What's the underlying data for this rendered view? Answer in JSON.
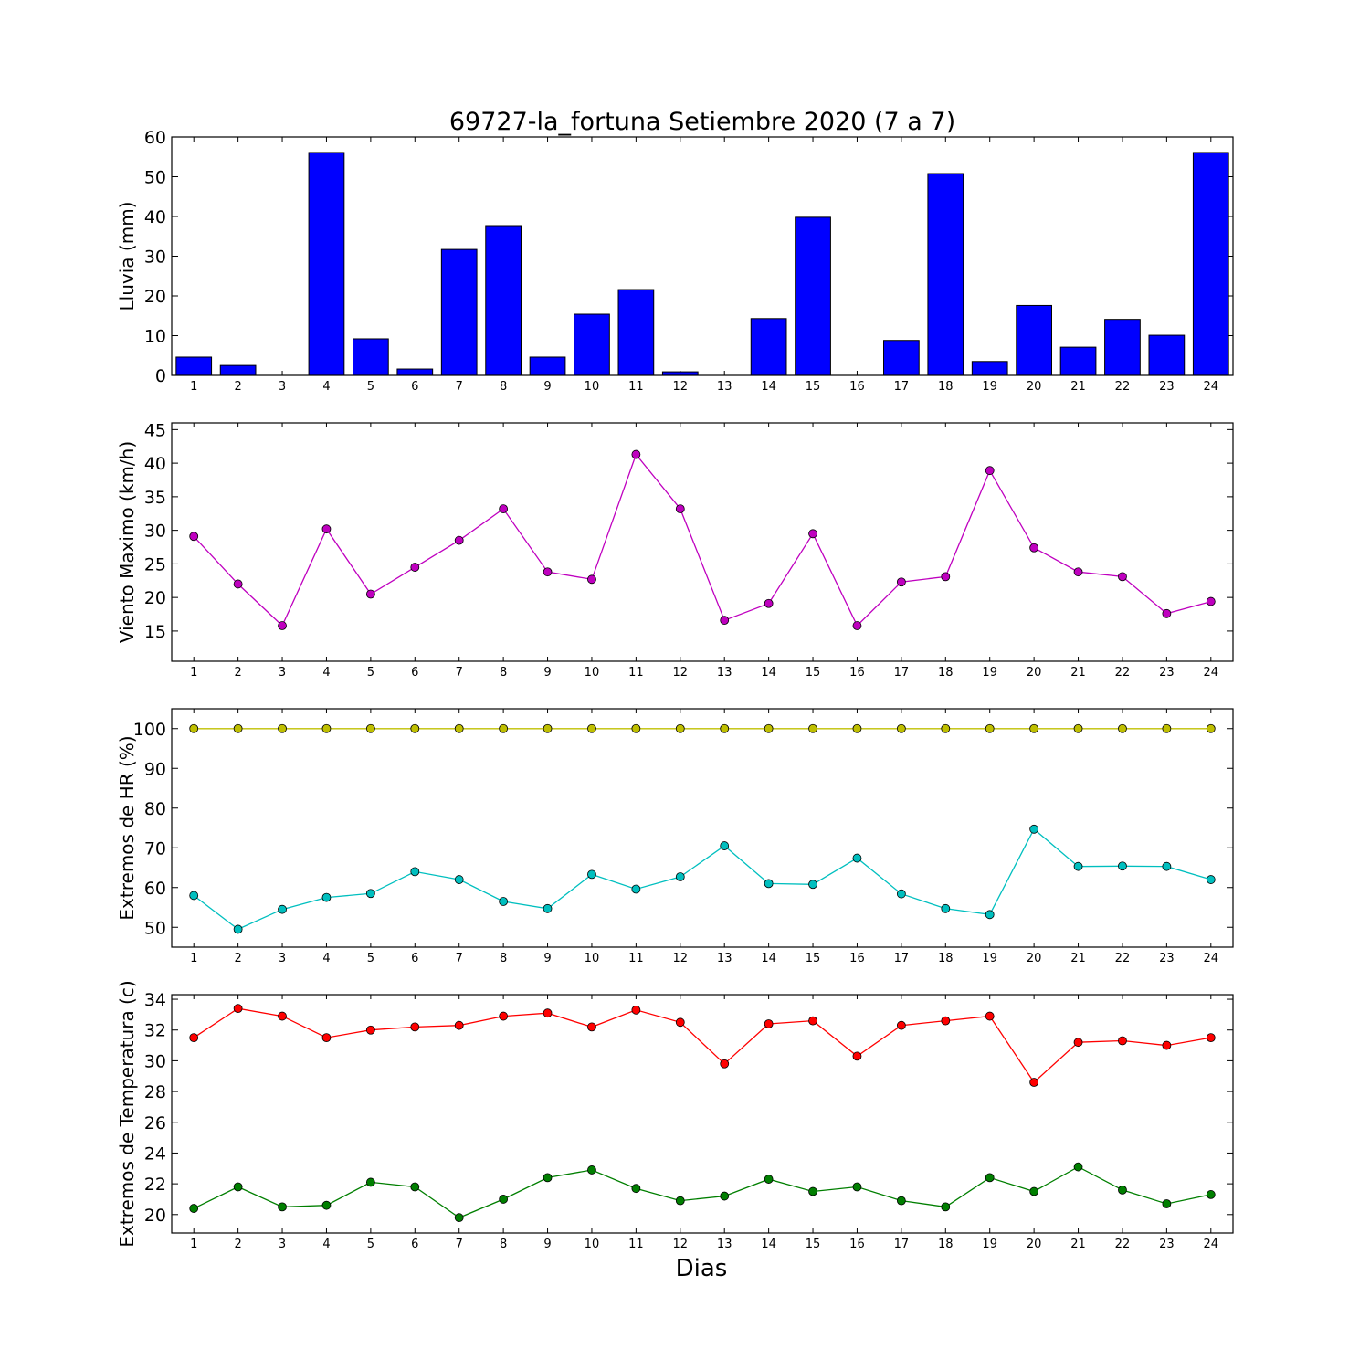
{
  "title": "69727-la_fortuna Setiembre 2020  (7 a 7)",
  "xlabel": "Dias",
  "chart_data": [
    {
      "type": "bar",
      "ylabel": "Lluvia (mm)",
      "ylim": [
        0,
        60
      ],
      "yticks": [
        0,
        10,
        20,
        30,
        40,
        50,
        60
      ],
      "categories": [
        "1",
        "2",
        "3",
        "4",
        "5",
        "6",
        "7",
        "8",
        "9",
        "10",
        "11",
        "12",
        "13",
        "14",
        "15",
        "16",
        "17",
        "18",
        "19",
        "20",
        "21",
        "22",
        "23",
        "24"
      ],
      "series": [
        {
          "color": "#0000ff",
          "values": [
            4.6,
            2.5,
            0.0,
            56.1,
            9.2,
            1.6,
            31.7,
            37.7,
            4.6,
            15.4,
            21.6,
            0.9,
            0.0,
            14.3,
            39.8,
            0.0,
            8.8,
            50.8,
            3.5,
            17.6,
            7.1,
            14.1,
            10.1,
            56.1
          ]
        }
      ]
    },
    {
      "type": "line",
      "ylabel": "Viento Maximo (km/h)",
      "ylim": [
        10.5,
        46
      ],
      "yticks": [
        15,
        20,
        25,
        30,
        35,
        40,
        45
      ],
      "categories": [
        "1",
        "2",
        "3",
        "4",
        "5",
        "6",
        "7",
        "8",
        "9",
        "10",
        "11",
        "12",
        "13",
        "14",
        "15",
        "16",
        "17",
        "18",
        "19",
        "20",
        "21",
        "22",
        "23",
        "24"
      ],
      "series": [
        {
          "color": "#bf00bf",
          "values": [
            29.1,
            22.0,
            15.8,
            30.2,
            20.5,
            24.5,
            28.5,
            33.2,
            23.8,
            22.7,
            41.3,
            33.2,
            16.6,
            19.1,
            29.5,
            15.8,
            22.3,
            23.1,
            38.9,
            27.4,
            23.8,
            23.1,
            17.6,
            19.4
          ]
        }
      ]
    },
    {
      "type": "line",
      "ylabel": "Extremos de HR (%)",
      "ylim": [
        45,
        105
      ],
      "yticks": [
        50,
        60,
        70,
        80,
        90,
        100
      ],
      "categories": [
        "1",
        "2",
        "3",
        "4",
        "5",
        "6",
        "7",
        "8",
        "9",
        "10",
        "11",
        "12",
        "13",
        "14",
        "15",
        "16",
        "17",
        "18",
        "19",
        "20",
        "21",
        "22",
        "23",
        "24"
      ],
      "series": [
        {
          "color": "#bfbf00",
          "values": [
            100,
            100,
            100,
            100,
            100,
            100,
            100,
            100,
            100,
            100,
            100,
            100,
            100,
            100,
            100,
            100,
            100,
            100,
            100,
            100,
            100,
            100,
            100,
            100
          ]
        },
        {
          "color": "#00bfbf",
          "values": [
            58.0,
            49.5,
            54.5,
            57.5,
            58.5,
            64.0,
            62.0,
            56.5,
            54.7,
            63.3,
            59.6,
            62.7,
            70.5,
            61.0,
            60.8,
            67.4,
            58.4,
            54.7,
            53.2,
            74.7,
            65.3,
            65.4,
            65.3,
            62.0
          ]
        }
      ]
    },
    {
      "type": "line",
      "ylabel": "Extremos de Temperatura (c)",
      "ylim": [
        18.8,
        34.3
      ],
      "yticks": [
        20,
        22,
        24,
        26,
        28,
        30,
        32,
        34
      ],
      "categories": [
        "1",
        "2",
        "3",
        "4",
        "5",
        "6",
        "7",
        "8",
        "9",
        "10",
        "11",
        "12",
        "13",
        "14",
        "15",
        "16",
        "17",
        "18",
        "19",
        "20",
        "21",
        "22",
        "23",
        "24"
      ],
      "series": [
        {
          "color": "#ff0000",
          "values": [
            31.5,
            33.4,
            32.9,
            31.5,
            32.0,
            32.2,
            32.3,
            32.9,
            33.1,
            32.2,
            33.3,
            32.5,
            29.8,
            32.4,
            32.6,
            30.3,
            32.3,
            32.6,
            32.9,
            28.6,
            31.2,
            31.3,
            31.0,
            31.5
          ]
        },
        {
          "color": "#007f00",
          "values": [
            20.4,
            21.8,
            20.5,
            20.6,
            22.1,
            21.8,
            19.8,
            21.0,
            22.4,
            22.9,
            21.7,
            20.9,
            21.2,
            22.3,
            21.5,
            21.8,
            20.9,
            20.5,
            22.4,
            21.5,
            23.1,
            21.6,
            20.7,
            21.3
          ]
        }
      ]
    }
  ]
}
